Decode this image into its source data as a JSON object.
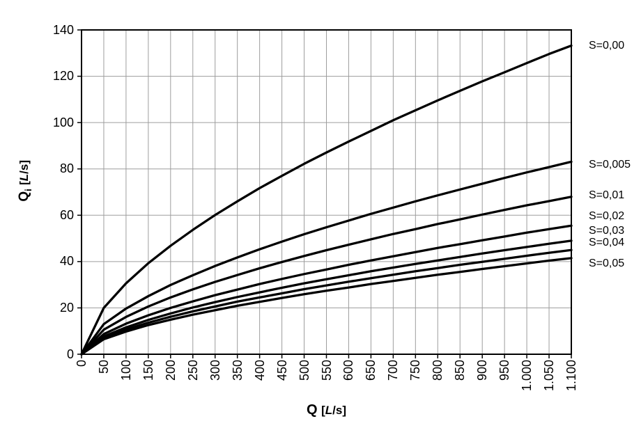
{
  "chart_data": {
    "type": "line",
    "title": "",
    "xlabel": "Q [L/s]",
    "ylabel": "Qi [L/s]",
    "xlim": [
      0,
      1100
    ],
    "ylim": [
      0,
      140
    ],
    "grid": true,
    "legend_position": "right-of-curve-endpoints",
    "x_ticks": [
      0,
      50,
      100,
      150,
      200,
      250,
      300,
      350,
      400,
      450,
      500,
      550,
      600,
      650,
      700,
      750,
      800,
      850,
      900,
      950,
      1000,
      1050,
      1100
    ],
    "x_tick_labels": [
      "0",
      "50",
      "100",
      "150",
      "200",
      "250",
      "300",
      "350",
      "400",
      "450",
      "500",
      "550",
      "600",
      "650",
      "700",
      "750",
      "800",
      "850",
      "900",
      "950",
      "1.000",
      "1.050",
      "1.100"
    ],
    "y_ticks": [
      0,
      20,
      40,
      60,
      80,
      100,
      120,
      140
    ],
    "y_tick_labels": [
      "0",
      "20",
      "40",
      "60",
      "80",
      "100",
      "120",
      "140"
    ],
    "x": [
      0,
      50,
      100,
      150,
      200,
      250,
      300,
      350,
      400,
      450,
      500,
      550,
      600,
      650,
      700,
      750,
      800,
      850,
      900,
      950,
      1000,
      1050,
      1100
    ],
    "series": [
      {
        "name": "S=0,00",
        "values": [
          0,
          20.0,
          30.6,
          39.3,
          46.8,
          53.7,
          60.1,
          66.0,
          71.7,
          77.0,
          82.2,
          87.1,
          91.8,
          96.4,
          101.0,
          105.3,
          109.6,
          113.7,
          117.8,
          121.7,
          125.7,
          129.6,
          133.2
        ]
      },
      {
        "name": "S=0,005",
        "values": [
          0,
          13.0,
          19.7,
          25.1,
          29.9,
          34.1,
          38.1,
          41.8,
          45.3,
          48.6,
          51.8,
          54.8,
          57.7,
          60.6,
          63.3,
          66.0,
          68.6,
          71.1,
          73.6,
          76.1,
          78.5,
          80.8,
          83.1
        ]
      },
      {
        "name": "S=0,01",
        "values": [
          0,
          10.6,
          16.1,
          20.6,
          24.5,
          28.0,
          31.2,
          34.2,
          37.1,
          39.8,
          42.4,
          44.9,
          47.3,
          49.6,
          51.9,
          54.0,
          56.2,
          58.2,
          60.3,
          62.3,
          64.3,
          66.1,
          68.0
        ]
      },
      {
        "name": "S=0,02",
        "values": [
          0,
          8.7,
          13.2,
          16.8,
          20.0,
          22.8,
          25.5,
          27.9,
          30.3,
          32.5,
          34.6,
          36.6,
          38.6,
          40.5,
          42.3,
          44.1,
          45.9,
          47.5,
          49.2,
          50.8,
          52.5,
          54.0,
          55.5
        ]
      },
      {
        "name": "S=0,03",
        "values": [
          0,
          7.7,
          11.6,
          14.8,
          17.6,
          20.2,
          22.5,
          24.7,
          26.7,
          28.7,
          30.6,
          32.4,
          34.1,
          35.8,
          37.4,
          39.0,
          40.5,
          42.0,
          43.5,
          44.9,
          46.3,
          47.7,
          49.0
        ]
      },
      {
        "name": "S=0,04",
        "values": [
          0,
          7.0,
          10.7,
          13.6,
          16.2,
          18.5,
          20.6,
          22.7,
          24.5,
          26.3,
          28.1,
          29.7,
          31.3,
          32.8,
          34.3,
          35.8,
          37.2,
          38.6,
          39.9,
          41.2,
          42.5,
          43.8,
          45.0
        ]
      },
      {
        "name": "S=0,05",
        "values": [
          0,
          6.5,
          9.8,
          12.6,
          14.9,
          17.1,
          19.0,
          20.9,
          22.6,
          24.3,
          25.9,
          27.4,
          28.8,
          30.3,
          31.6,
          33.0,
          34.3,
          35.5,
          36.8,
          38.0,
          39.2,
          40.4,
          41.5
        ]
      }
    ]
  },
  "axis_titles": {
    "x_q": "Q",
    "x_open": "[",
    "x_l": "L",
    "x_close": "/s]",
    "y_q": "Q",
    "y_sub": "i",
    "y_open": "[",
    "y_l": "L",
    "y_close": "/s]"
  },
  "colors": {
    "background": "#ffffff",
    "curve": "#000000",
    "grid": "#9d9d9d",
    "frame": "#000000",
    "text": "#000000"
  }
}
